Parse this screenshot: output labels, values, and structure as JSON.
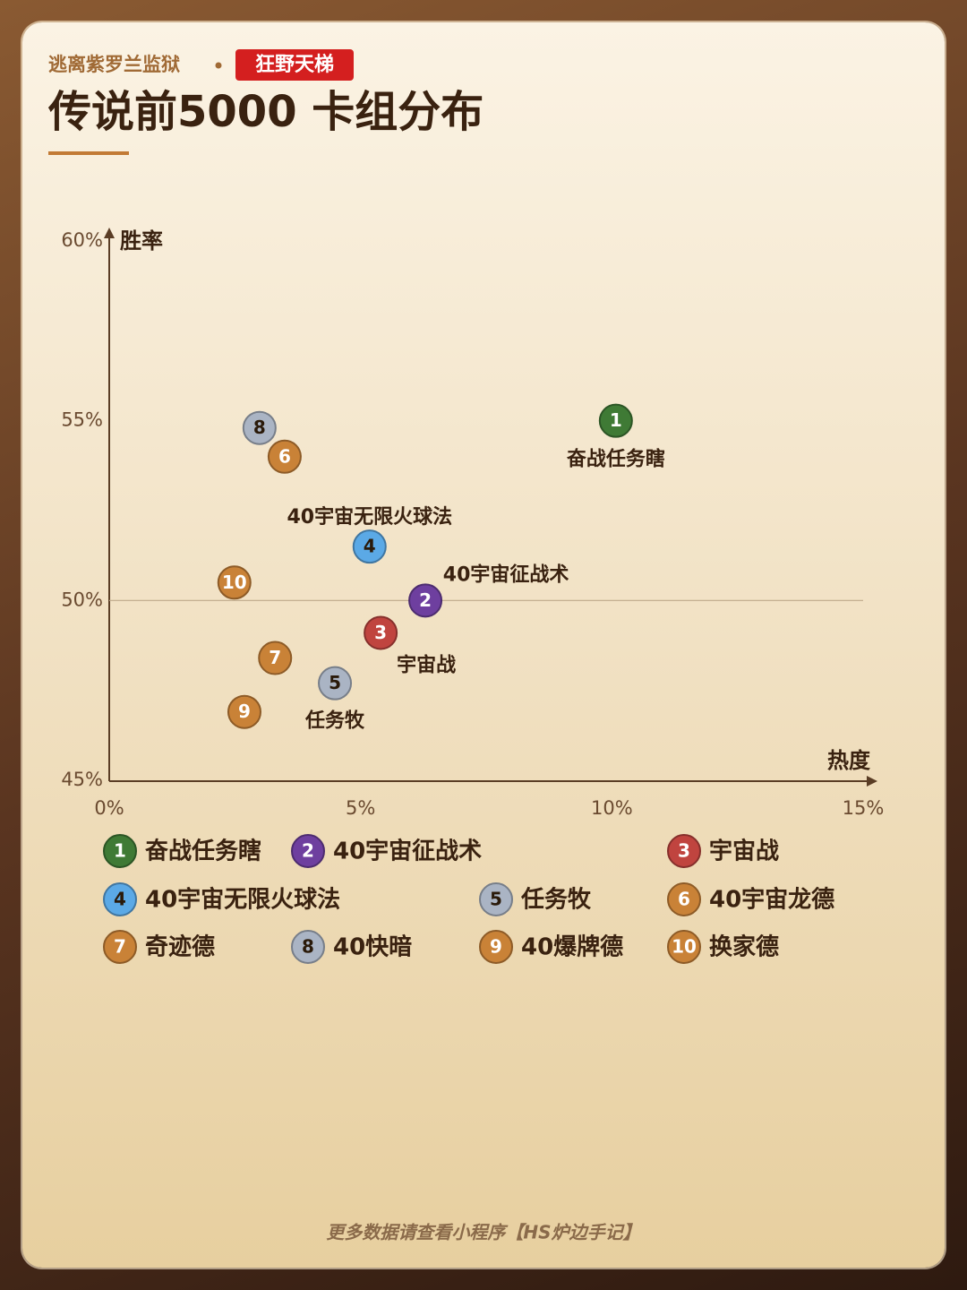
{
  "header": {
    "source": "逃离紫罗兰监狱",
    "badge": "狂野天梯"
  },
  "chart_data": {
    "type": "scatter",
    "title": "传说前5000 卡组分布",
    "x_label": "热度",
    "y_label": "胜率",
    "xlim": [
      0,
      15
    ],
    "ylim": [
      45,
      60
    ],
    "xticks": [
      {
        "value": 0,
        "label": "0%"
      },
      {
        "value": 5,
        "label": "5%"
      },
      {
        "value": 10,
        "label": "10%"
      },
      {
        "value": 15,
        "label": "15%"
      }
    ],
    "yticks": [
      {
        "value": 45,
        "label": "45%"
      },
      {
        "value": 50,
        "label": "50%"
      },
      {
        "value": 55,
        "label": "55%"
      },
      {
        "value": 60,
        "label": "60%"
      }
    ],
    "reference_line": 50,
    "series": [
      {
        "rank": 1,
        "name": "奋战任务瞎",
        "color": "#3f7a35",
        "x": [
          10.08
        ],
        "values": [
          55.0
        ]
      },
      {
        "rank": 2,
        "name": "40宇宙征战术",
        "color": "#6e3f9f",
        "x": [
          6.29
        ],
        "values": [
          50.0
        ]
      },
      {
        "rank": 3,
        "name": "宇宙战",
        "color": "#c0443f",
        "x": [
          5.4
        ],
        "values": [
          49.1
        ]
      },
      {
        "rank": 4,
        "name": "40宇宙无限火球法",
        "color": "#5ba9e6",
        "x": [
          5.18
        ],
        "values": [
          51.5
        ]
      },
      {
        "rank": 5,
        "name": "任务牧",
        "color": "#aab4c4",
        "x": [
          4.49
        ],
        "values": [
          47.7
        ]
      },
      {
        "rank": 6,
        "name": "40宇宙龙德",
        "color": "#c98237",
        "x": [
          3.49
        ],
        "values": [
          54.0
        ]
      },
      {
        "rank": 7,
        "name": "奇迹德",
        "color": "#c98237",
        "x": [
          3.3
        ],
        "values": [
          48.4
        ]
      },
      {
        "rank": 8,
        "name": "40快暗",
        "color": "#aab4c4",
        "x": [
          2.99
        ],
        "values": [
          54.8
        ]
      },
      {
        "rank": 9,
        "name": "40爆牌德",
        "color": "#c98237",
        "x": [
          2.69
        ],
        "values": [
          46.9
        ]
      },
      {
        "rank": 10,
        "name": "换家德",
        "color": "#c98237",
        "x": [
          2.49
        ],
        "values": [
          50.5
        ]
      }
    ]
  },
  "footer": "更多数据请查看小程序【HS炉边手记】"
}
